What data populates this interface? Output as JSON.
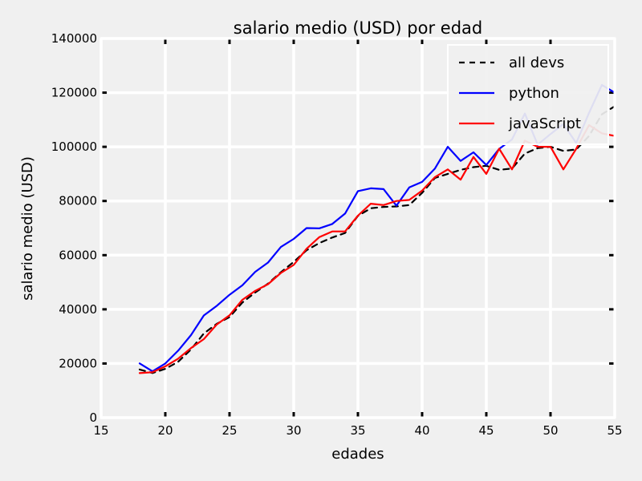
{
  "chart_data": {
    "type": "line",
    "title": "salario medio (USD) por edad",
    "xlabel": "edades",
    "ylabel": "salario medio (USD)",
    "xlim": [
      15,
      55
    ],
    "ylim": [
      0,
      140000
    ],
    "xticks": [
      15,
      20,
      25,
      30,
      35,
      40,
      45,
      50,
      55
    ],
    "yticks": [
      0,
      20000,
      40000,
      60000,
      80000,
      100000,
      120000,
      140000
    ],
    "grid": true,
    "legend_position": "top-right",
    "x": [
      18,
      19,
      20,
      21,
      22,
      23,
      24,
      25,
      26,
      27,
      28,
      29,
      30,
      31,
      32,
      33,
      34,
      35,
      36,
      37,
      38,
      39,
      40,
      41,
      42,
      43,
      44,
      45,
      46,
      47,
      48,
      49,
      50,
      51,
      52,
      53,
      54,
      55
    ],
    "series": [
      {
        "name": "all devs",
        "color": "#000000",
        "style": "dashed",
        "values": [
          17784,
          16500,
          18012,
          20628,
          25206,
          31087,
          34632,
          37113,
          42498,
          46200,
          49500,
          53700,
          57500,
          61800,
          64500,
          66500,
          68200,
          74500,
          77300,
          77800,
          78000,
          78500,
          83000,
          88500,
          90000,
          91500,
          92500,
          93000,
          91500,
          92000,
          97500,
          99500,
          100000,
          98500,
          99000,
          104000,
          112000,
          115000
        ]
      },
      {
        "name": "python",
        "color": "#0000ff",
        "style": "solid",
        "values": [
          20046,
          17100,
          20000,
          24744,
          30500,
          37732,
          41247,
          45372,
          48876,
          53850,
          57287,
          63016,
          65998,
          70003,
          69900,
          71496,
          75370,
          83640,
          84666,
          84392,
          78254,
          85000,
          87038,
          91991,
          100000,
          94796,
          97962,
          93302,
          99240,
          102736,
          112285,
          100771,
          104708,
          108423,
          101407,
          112542,
          122870,
          120000
        ]
      },
      {
        "name": "javaScript",
        "color": "#ff0000",
        "style": "solid",
        "values": [
          16446,
          16791,
          18942,
          21780,
          25704,
          29000,
          34372,
          37810,
          43515,
          46823,
          49293,
          53437,
          56373,
          62375,
          66674,
          68745,
          68746,
          74583,
          79000,
          78508,
          79996,
          80403,
          83820,
          88833,
          91660,
          87892,
          96243,
          90000,
          99313,
          91660,
          102264,
          100000,
          100000,
          91660,
          99240,
          108000,
          105000,
          104000
        ]
      }
    ]
  }
}
